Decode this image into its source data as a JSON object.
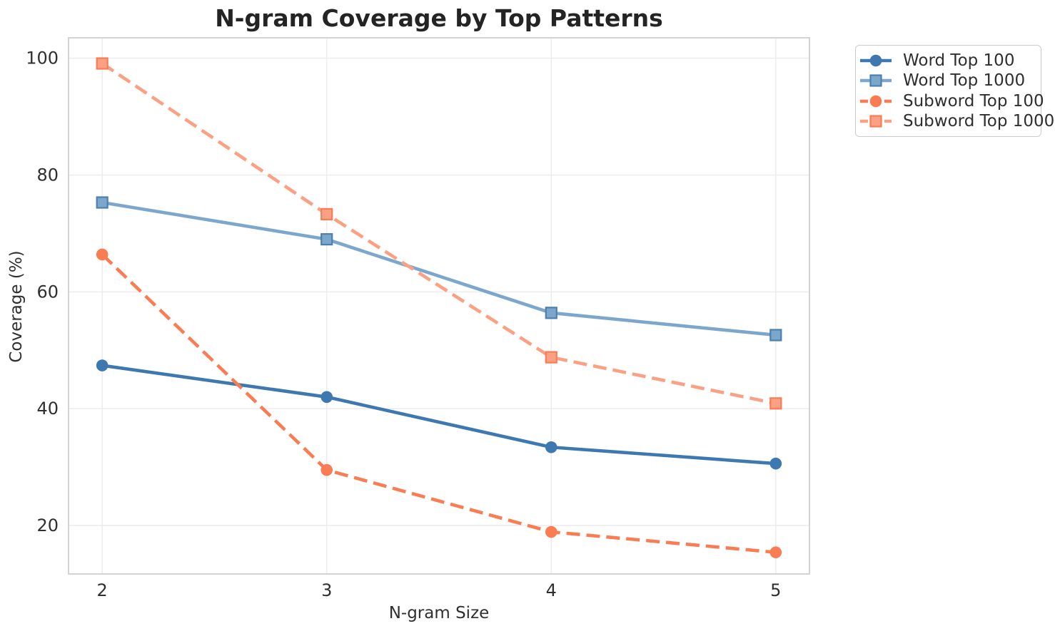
{
  "chart_data": {
    "type": "line",
    "title": "N-gram Coverage by Top Patterns",
    "xlabel": "N-gram Size",
    "ylabel": "Coverage (%)",
    "x": [
      2,
      3,
      4,
      5
    ],
    "xtick_labels": [
      "2",
      "3",
      "4",
      "5"
    ],
    "ytick_values": [
      20,
      40,
      60,
      80,
      100
    ],
    "xlim": [
      1.85,
      5.15
    ],
    "ylim": [
      11.7,
      103.5
    ],
    "grid": "on",
    "legend_position": "outside upper right",
    "series": [
      {
        "name": "Word Top 100",
        "marker": "circle",
        "line_style": "solid",
        "color": "#3D79B0",
        "edge_color": "#3D79B0",
        "values": [
          47.4,
          42.0,
          33.4,
          30.6
        ]
      },
      {
        "name": "Word Top 1000",
        "marker": "square",
        "line_style": "solid",
        "color": "#7CA7CD",
        "edge_color": "#4C80B0",
        "values": [
          75.3,
          69.0,
          56.4,
          52.6
        ]
      },
      {
        "name": "Subword Top 100",
        "marker": "circle",
        "line_style": "dashed",
        "color": "#F97C53",
        "edge_color": "#F97C53",
        "values": [
          66.4,
          29.5,
          18.9,
          15.4
        ]
      },
      {
        "name": "Subword Top 1000",
        "marker": "square",
        "line_style": "dashed",
        "color": "#FBA183",
        "edge_color": "#F87C55",
        "values": [
          99.1,
          73.3,
          48.8,
          40.9
        ]
      }
    ],
    "style": {
      "grid_color": "#ECECEC",
      "spine_color": "#D3D3D3",
      "tick_label_color": "#2F2F2F",
      "background": "#FFFFFF"
    }
  }
}
